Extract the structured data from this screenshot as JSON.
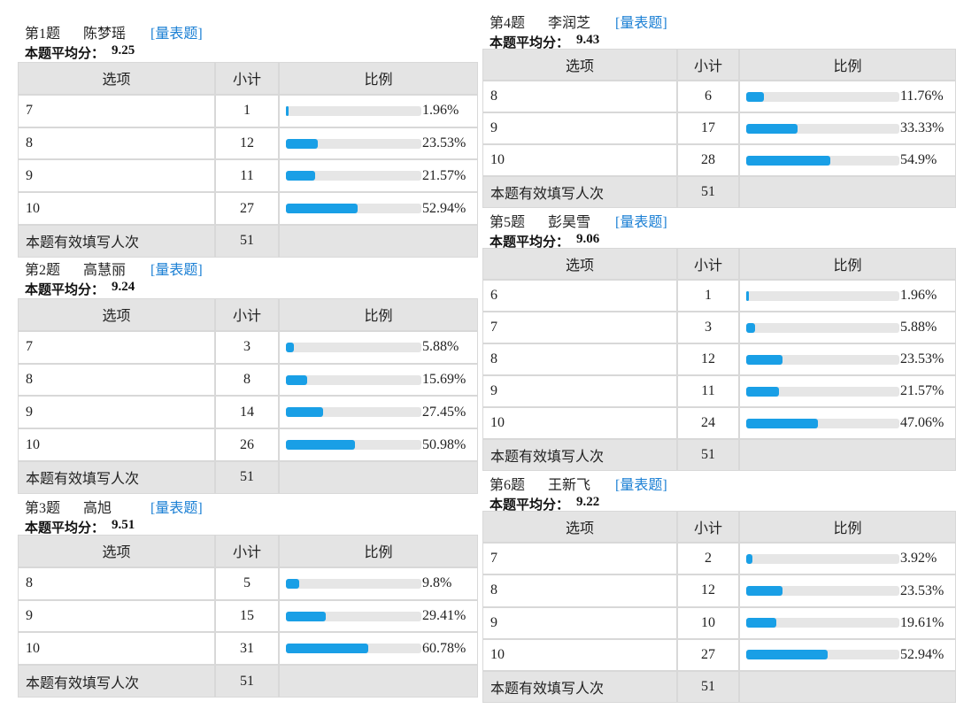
{
  "headers": [
    "选项",
    "小计",
    "比例"
  ],
  "type_tag": "[量表题]",
  "avg_label": "本题平均分：",
  "total_label": "本题有效填写人次",
  "questions": [
    {
      "number": "第1题",
      "name": "陈梦瑶",
      "average": 9.25,
      "total": 51,
      "rows": [
        {
          "option": "7",
          "count": 1,
          "percent": 1.96,
          "percent_label": "1.96%"
        },
        {
          "option": "8",
          "count": 12,
          "percent": 23.53,
          "percent_label": "23.53%"
        },
        {
          "option": "9",
          "count": 11,
          "percent": 21.57,
          "percent_label": "21.57%"
        },
        {
          "option": "10",
          "count": 27,
          "percent": 52.94,
          "percent_label": "52.94%"
        }
      ]
    },
    {
      "number": "第2题",
      "name": "高慧丽",
      "average": 9.24,
      "total": 51,
      "rows": [
        {
          "option": "7",
          "count": 3,
          "percent": 5.88,
          "percent_label": "5.88%"
        },
        {
          "option": "8",
          "count": 8,
          "percent": 15.69,
          "percent_label": "15.69%"
        },
        {
          "option": "9",
          "count": 14,
          "percent": 27.45,
          "percent_label": "27.45%"
        },
        {
          "option": "10",
          "count": 26,
          "percent": 50.98,
          "percent_label": "50.98%"
        }
      ]
    },
    {
      "number": "第3题",
      "name": "高旭",
      "average": 9.51,
      "total": 51,
      "rows": [
        {
          "option": "8",
          "count": 5,
          "percent": 9.8,
          "percent_label": "9.8%"
        },
        {
          "option": "9",
          "count": 15,
          "percent": 29.41,
          "percent_label": "29.41%"
        },
        {
          "option": "10",
          "count": 31,
          "percent": 60.78,
          "percent_label": "60.78%"
        }
      ]
    },
    {
      "number": "第4题",
      "name": "李润芝",
      "average": 9.43,
      "total": 51,
      "rows": [
        {
          "option": "8",
          "count": 6,
          "percent": 11.76,
          "percent_label": "11.76%"
        },
        {
          "option": "9",
          "count": 17,
          "percent": 33.33,
          "percent_label": "33.33%"
        },
        {
          "option": "10",
          "count": 28,
          "percent": 54.9,
          "percent_label": "54.9%"
        }
      ]
    },
    {
      "number": "第5题",
      "name": "彭昊雪",
      "average": 9.06,
      "total": 51,
      "rows": [
        {
          "option": "6",
          "count": 1,
          "percent": 1.96,
          "percent_label": "1.96%"
        },
        {
          "option": "7",
          "count": 3,
          "percent": 5.88,
          "percent_label": "5.88%"
        },
        {
          "option": "8",
          "count": 12,
          "percent": 23.53,
          "percent_label": "23.53%"
        },
        {
          "option": "9",
          "count": 11,
          "percent": 21.57,
          "percent_label": "21.57%"
        },
        {
          "option": "10",
          "count": 24,
          "percent": 47.06,
          "percent_label": "47.06%"
        }
      ]
    },
    {
      "number": "第6题",
      "name": "王新飞",
      "average": 9.22,
      "total": 51,
      "rows": [
        {
          "option": "7",
          "count": 2,
          "percent": 3.92,
          "percent_label": "3.92%"
        },
        {
          "option": "8",
          "count": 12,
          "percent": 23.53,
          "percent_label": "23.53%"
        },
        {
          "option": "9",
          "count": 10,
          "percent": 19.61,
          "percent_label": "19.61%"
        },
        {
          "option": "10",
          "count": 27,
          "percent": 52.94,
          "percent_label": "52.94%"
        }
      ]
    }
  ]
}
